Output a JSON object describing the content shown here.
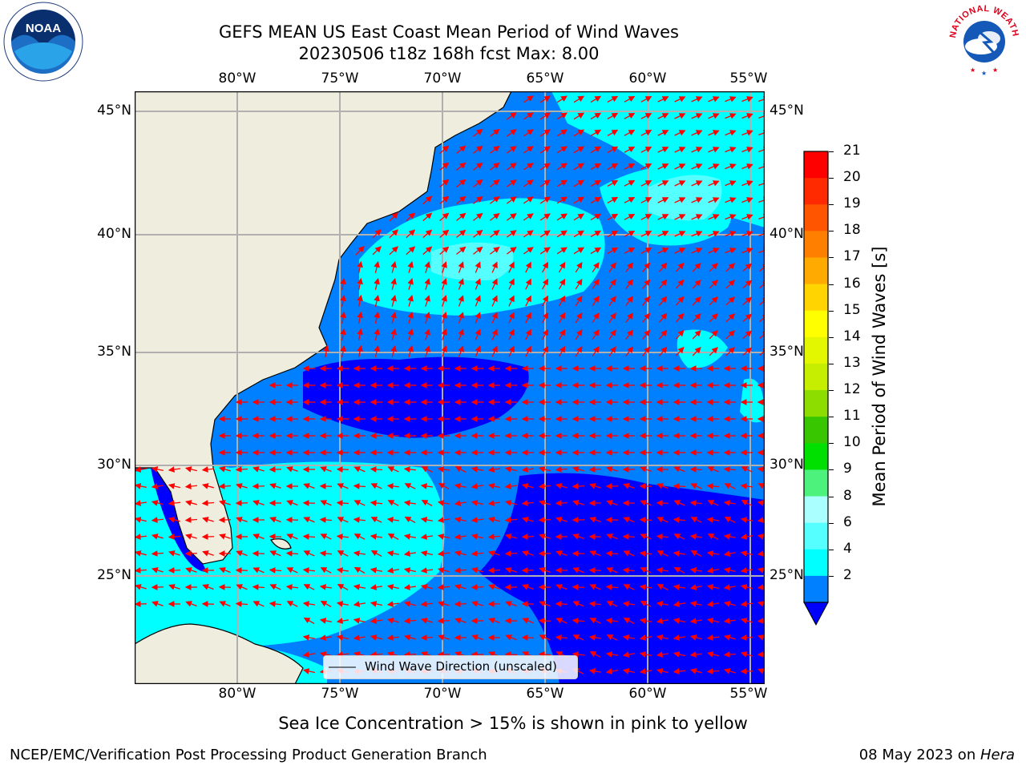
{
  "title": {
    "line1": "GEFS MEAN US East Coast Mean Period of Wind Waves",
    "line2": "20230506 t18z 168h fcst   Max: 8.00"
  },
  "logos": {
    "left": {
      "text": "NOAA",
      "icon": "noaa-logo-icon"
    },
    "right": {
      "text": "NATIONAL WEATHER SERVICE",
      "icon": "nws-logo-icon"
    }
  },
  "map": {
    "lon_labels": [
      "80°W",
      "75°W",
      "70°W",
      "65°W",
      "60°W",
      "55°W"
    ],
    "lat_labels": [
      "45°N",
      "40°N",
      "35°N",
      "30°N",
      "25°N"
    ],
    "lon_range": [
      -85,
      -54.2
    ],
    "lat_range": [
      20.5,
      46
    ],
    "gridlines": true,
    "land_color": "#efedde",
    "arrow_color": "#ff0000"
  },
  "legend": {
    "label": "Wind Wave Direction (unscaled)"
  },
  "colorbar": {
    "title": "Mean Period of Wind Waves [s]",
    "tick_labels": [
      "21",
      "20",
      "19",
      "18",
      "17",
      "16",
      "15",
      "14",
      "13",
      "12",
      "11",
      "10",
      "9",
      "8",
      "6",
      "4",
      "2"
    ],
    "colors": [
      "#ff0000",
      "#ff2a00",
      "#ff5500",
      "#ff8000",
      "#ffaa00",
      "#ffd400",
      "#ffff00",
      "#e2f700",
      "#c6ee00",
      "#8ddd00",
      "#38c600",
      "#00e000",
      "#4cf27c",
      "#aaffff",
      "#55ffff",
      "#00ffff",
      "#0080ff"
    ],
    "extend_color": "#0000ff"
  },
  "footer": {
    "note": "Sea Ice Concentration > 15% is shown in pink to yellow",
    "left": "NCEP/EMC/Verification Post Processing Product Generation Branch",
    "date": "08 May 2023 on ",
    "machine": "Hera"
  }
}
